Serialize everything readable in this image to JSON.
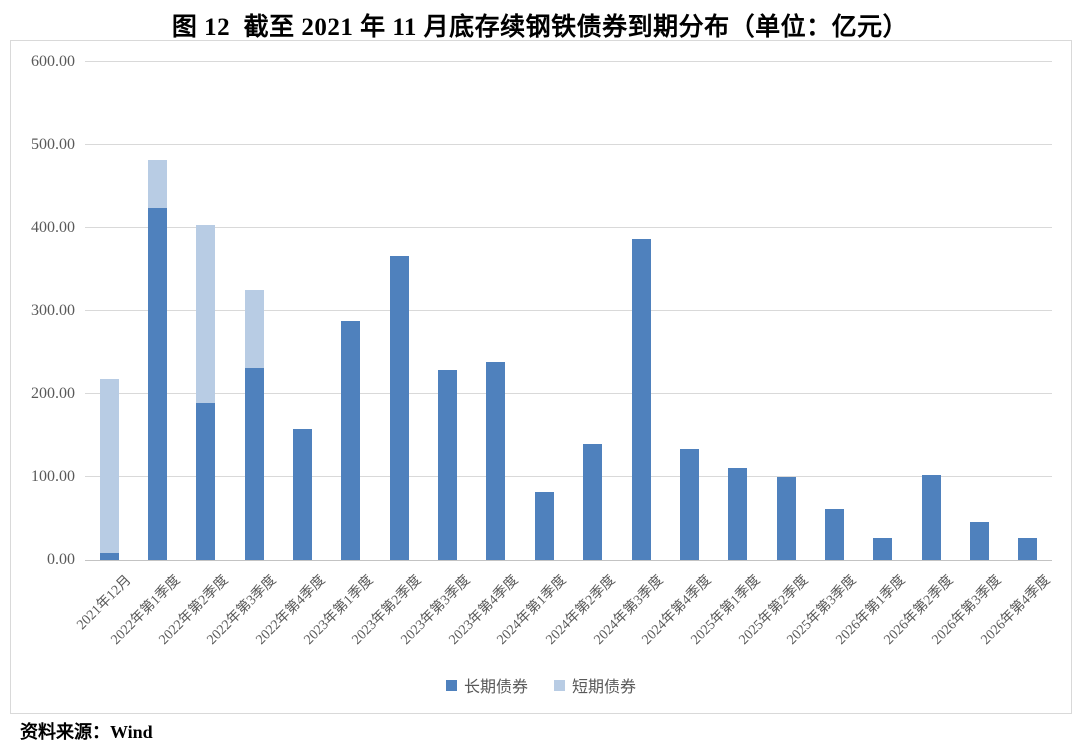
{
  "title": "图 12  截至 2021 年 11 月底存续钢铁债券到期分布（单位：亿元）",
  "source_note": "资料来源：Wind",
  "colors": {
    "long_term_bar": "#4f81bd",
    "short_term_bar": "#b8cce4",
    "gridline": "#d9d9d9",
    "axis_text": "#595959"
  },
  "chart_data": {
    "type": "bar",
    "stacked": true,
    "title": "图 12  截至 2021 年 11 月底存续钢铁债券到期分布（单位：亿元）",
    "xlabel": "",
    "ylabel": "",
    "ylim": [
      0,
      600
    ],
    "yticks": [
      "0.00",
      "100.00",
      "200.00",
      "300.00",
      "400.00",
      "500.00",
      "600.00"
    ],
    "grid": true,
    "legend_position": "bottom",
    "categories": [
      "2021年12月",
      "2022年第1季度",
      "2022年第2季度",
      "2022年第3季度",
      "2022年第4季度",
      "2023年第1季度",
      "2023年第2季度",
      "2023年第3季度",
      "2023年第4季度",
      "2024年第1季度",
      "2024年第2季度",
      "2024年第3季度",
      "2024年第4季度",
      "2025年第1季度",
      "2025年第2季度",
      "2025年第3季度",
      "2026年第1季度",
      "2026年第2季度",
      "2026年第3季度",
      "2026年第4季度"
    ],
    "series": [
      {
        "name": "长期债券",
        "color": "#4f81bd",
        "values": [
          8,
          424,
          189,
          231,
          158,
          288,
          366,
          229,
          239,
          82,
          140,
          387,
          134,
          111,
          100,
          61,
          26,
          103,
          46,
          26
        ]
      },
      {
        "name": "短期债券",
        "color": "#b8cce4",
        "values": [
          210,
          58,
          215,
          94,
          0,
          0,
          0,
          0,
          0,
          0,
          0,
          0,
          0,
          0,
          0,
          0,
          0,
          0,
          0,
          0
        ]
      }
    ]
  }
}
